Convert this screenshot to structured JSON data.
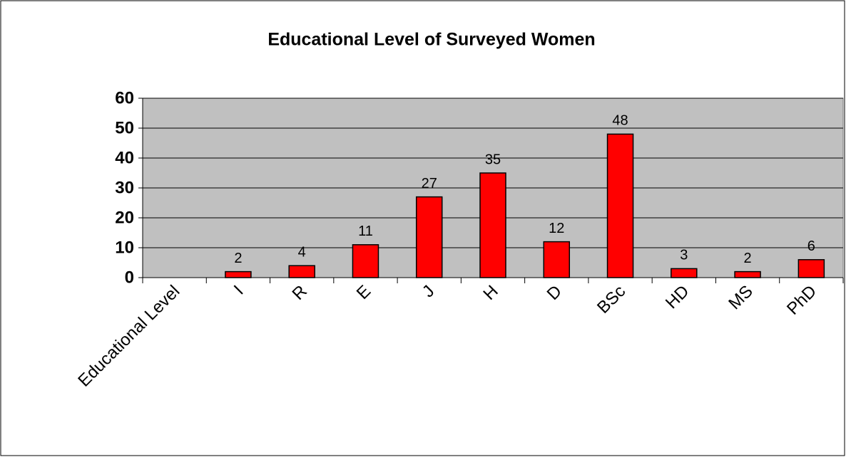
{
  "chart_data": {
    "type": "bar",
    "title": "Educational Level of Surveyed Women",
    "categories": [
      "Educational Level",
      "I",
      "R",
      "E",
      "J",
      "H",
      "D",
      "BSc",
      "HD",
      "MS",
      "PhD"
    ],
    "values": [
      null,
      2,
      4,
      11,
      27,
      35,
      12,
      48,
      3,
      2,
      6
    ],
    "color": "#ff0000",
    "ylim": [
      0,
      60
    ],
    "yticks": [
      0,
      10,
      20,
      30,
      40,
      50,
      60
    ],
    "grid": true
  }
}
